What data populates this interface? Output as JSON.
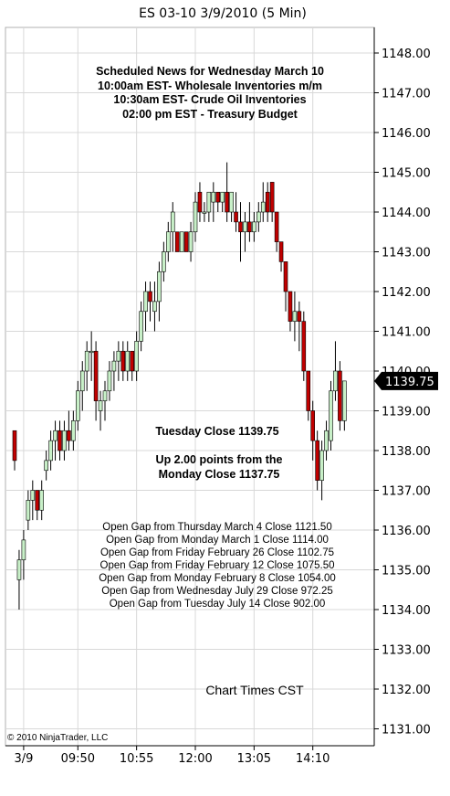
{
  "title": "ES 03-10  3/9/2010 (5 Min)",
  "news": {
    "heading": "Scheduled News for Wednesday March 10",
    "lines": [
      "10:00am EST-  Wholesale Inventories m/m",
      "10:30am EST- Crude Oil Inventories",
      "02:00 pm EST - Treasury Budget"
    ]
  },
  "close_note": {
    "line1": "Tuesday Close 1139.75",
    "line2": "Up 2.00 points from the",
    "line3": "Monday Close 1137.75"
  },
  "gaps": [
    "Open Gap from Thursday March 4 Close 1121.50",
    "Open Gap from Monday March 1 Close 1114.00",
    "Open Gap from Friday February 26 Close 1102.75",
    "Open Gap from Friday February 12 Close 1075.50",
    "Open Gap from Monday February 8 Close 1054.00",
    "Open Gap from Wednesday July 29 Close 972.25",
    "Open Gap from Tuesday July 14 Close 902.00"
  ],
  "chart_times_note": "Chart Times CST",
  "copyright": "© 2010 NinjaTrader, LLC",
  "last_price_label": "1139.75",
  "colors": {
    "up": "#c8f0c8",
    "down": "#c00000",
    "wick": "#000000",
    "grid": "#d8d8d8",
    "price_tag": "#000000"
  },
  "chart_data": {
    "type": "candlestick",
    "title": "ES 03-10  3/9/2010 (5 Min)",
    "ylim": [
      1130.75,
      1148.5
    ],
    "y_ticks": [
      1131.0,
      1132.0,
      1133.0,
      1134.0,
      1135.0,
      1136.0,
      1137.0,
      1138.0,
      1139.0,
      1140.0,
      1141.0,
      1142.0,
      1143.0,
      1144.0,
      1145.0,
      1146.0,
      1147.0,
      1148.0
    ],
    "y_tick_labels": [
      "1131.00",
      "1132.00",
      "1133.00",
      "1134.00",
      "1135.00",
      "1136.00",
      "1137.00",
      "1138.00",
      "1139.00",
      "1140.00",
      "1141.00",
      "1142.00",
      "1143.00",
      "1144.00",
      "1145.00",
      "1146.00",
      "1147.00",
      "1148.00"
    ],
    "x_tick_labels": [
      "3/9",
      "09:50",
      "10:55",
      "12:00",
      "13:05",
      "14:10"
    ],
    "x_tick_bar_index": [
      2,
      14,
      27,
      40,
      53,
      66
    ],
    "last_price": 1139.75,
    "bars": [
      {
        "o": 1138.5,
        "h": 1138.5,
        "l": 1137.5,
        "c": 1137.75
      },
      {
        "o": 1134.75,
        "h": 1135.5,
        "l": 1134.0,
        "c": 1135.25
      },
      {
        "o": 1135.25,
        "h": 1136.0,
        "l": 1134.75,
        "c": 1135.75
      },
      {
        "o": 1136.25,
        "h": 1137.0,
        "l": 1136.0,
        "c": 1136.75
      },
      {
        "o": 1136.75,
        "h": 1137.25,
        "l": 1136.25,
        "c": 1137.0
      },
      {
        "o": 1137.0,
        "h": 1137.0,
        "l": 1136.25,
        "c": 1136.5
      },
      {
        "o": 1136.5,
        "h": 1137.25,
        "l": 1136.25,
        "c": 1137.0
      },
      {
        "o": 1137.5,
        "h": 1138.0,
        "l": 1137.25,
        "c": 1137.75
      },
      {
        "o": 1137.75,
        "h": 1138.5,
        "l": 1137.5,
        "c": 1138.25
      },
      {
        "o": 1138.25,
        "h": 1138.75,
        "l": 1137.75,
        "c": 1138.5
      },
      {
        "o": 1138.5,
        "h": 1138.75,
        "l": 1137.75,
        "c": 1138.0
      },
      {
        "o": 1138.0,
        "h": 1138.75,
        "l": 1137.75,
        "c": 1138.5
      },
      {
        "o": 1138.5,
        "h": 1139.0,
        "l": 1138.0,
        "c": 1138.25
      },
      {
        "o": 1138.25,
        "h": 1139.0,
        "l": 1138.0,
        "c": 1138.75
      },
      {
        "o": 1138.75,
        "h": 1139.75,
        "l": 1138.5,
        "c": 1139.5
      },
      {
        "o": 1139.5,
        "h": 1140.25,
        "l": 1139.0,
        "c": 1140.0
      },
      {
        "o": 1140.0,
        "h": 1140.75,
        "l": 1139.5,
        "c": 1140.5
      },
      {
        "o": 1140.5,
        "h": 1141.0,
        "l": 1139.75,
        "c": 1140.5
      },
      {
        "o": 1140.5,
        "h": 1140.75,
        "l": 1138.75,
        "c": 1139.25
      },
      {
        "o": 1139.0,
        "h": 1139.5,
        "l": 1138.5,
        "c": 1139.25
      },
      {
        "o": 1139.25,
        "h": 1139.75,
        "l": 1138.75,
        "c": 1139.5
      },
      {
        "o": 1139.5,
        "h": 1140.25,
        "l": 1139.25,
        "c": 1140.0
      },
      {
        "o": 1140.0,
        "h": 1140.5,
        "l": 1139.5,
        "c": 1140.25
      },
      {
        "o": 1140.25,
        "h": 1140.75,
        "l": 1139.75,
        "c": 1140.5
      },
      {
        "o": 1140.5,
        "h": 1140.75,
        "l": 1139.75,
        "c": 1140.0
      },
      {
        "o": 1140.0,
        "h": 1140.75,
        "l": 1139.75,
        "c": 1140.5
      },
      {
        "o": 1140.5,
        "h": 1140.5,
        "l": 1139.75,
        "c": 1140.0
      },
      {
        "o": 1140.0,
        "h": 1141.0,
        "l": 1139.75,
        "c": 1140.75
      },
      {
        "o": 1140.75,
        "h": 1141.75,
        "l": 1140.5,
        "c": 1141.5
      },
      {
        "o": 1141.5,
        "h": 1142.25,
        "l": 1141.0,
        "c": 1142.0
      },
      {
        "o": 1142.0,
        "h": 1142.25,
        "l": 1141.25,
        "c": 1141.75
      },
      {
        "o": 1141.5,
        "h": 1142.25,
        "l": 1141.0,
        "c": 1141.75
      },
      {
        "o": 1141.75,
        "h": 1142.75,
        "l": 1141.25,
        "c": 1142.5
      },
      {
        "o": 1142.5,
        "h": 1143.25,
        "l": 1142.25,
        "c": 1143.0
      },
      {
        "o": 1143.0,
        "h": 1143.75,
        "l": 1142.75,
        "c": 1143.5
      },
      {
        "o": 1143.5,
        "h": 1144.25,
        "l": 1143.0,
        "c": 1144.0
      },
      {
        "o": 1143.5,
        "h": 1143.5,
        "l": 1143.0,
        "c": 1143.0
      },
      {
        "o": 1143.0,
        "h": 1143.5,
        "l": 1143.0,
        "c": 1143.5
      },
      {
        "o": 1143.5,
        "h": 1143.5,
        "l": 1143.0,
        "c": 1143.0
      },
      {
        "o": 1143.0,
        "h": 1143.75,
        "l": 1142.75,
        "c": 1143.5
      },
      {
        "o": 1143.5,
        "h": 1144.5,
        "l": 1143.25,
        "c": 1144.25
      },
      {
        "o": 1144.5,
        "h": 1144.75,
        "l": 1143.75,
        "c": 1144.0
      },
      {
        "o": 1144.0,
        "h": 1144.25,
        "l": 1143.75,
        "c": 1144.0
      },
      {
        "o": 1144.0,
        "h": 1144.5,
        "l": 1143.75,
        "c": 1144.5
      },
      {
        "o": 1144.25,
        "h": 1144.75,
        "l": 1143.75,
        "c": 1144.5
      },
      {
        "o": 1144.5,
        "h": 1144.5,
        "l": 1144.0,
        "c": 1144.25
      },
      {
        "o": 1144.25,
        "h": 1144.5,
        "l": 1144.0,
        "c": 1144.5
      },
      {
        "o": 1144.5,
        "h": 1145.25,
        "l": 1143.75,
        "c": 1144.0
      },
      {
        "o": 1144.0,
        "h": 1144.5,
        "l": 1143.75,
        "c": 1144.5
      },
      {
        "o": 1144.0,
        "h": 1144.5,
        "l": 1143.5,
        "c": 1143.75
      },
      {
        "o": 1143.75,
        "h": 1144.25,
        "l": 1142.75,
        "c": 1143.5
      },
      {
        "o": 1143.5,
        "h": 1144.0,
        "l": 1143.0,
        "c": 1143.75
      },
      {
        "o": 1143.75,
        "h": 1144.25,
        "l": 1143.25,
        "c": 1143.5
      },
      {
        "o": 1143.5,
        "h": 1144.0,
        "l": 1143.25,
        "c": 1143.75
      },
      {
        "o": 1143.75,
        "h": 1144.25,
        "l": 1143.5,
        "c": 1144.0
      },
      {
        "o": 1144.0,
        "h": 1144.75,
        "l": 1143.75,
        "c": 1144.25
      },
      {
        "o": 1144.5,
        "h": 1144.75,
        "l": 1143.75,
        "c": 1144.0
      },
      {
        "o": 1144.75,
        "h": 1144.75,
        "l": 1143.75,
        "c": 1144.0
      },
      {
        "o": 1144.0,
        "h": 1144.0,
        "l": 1143.0,
        "c": 1143.25
      },
      {
        "o": 1143.25,
        "h": 1143.25,
        "l": 1142.5,
        "c": 1142.75
      },
      {
        "o": 1142.75,
        "h": 1142.75,
        "l": 1141.5,
        "c": 1142.0
      },
      {
        "o": 1142.0,
        "h": 1142.0,
        "l": 1141.0,
        "c": 1141.25
      },
      {
        "o": 1141.25,
        "h": 1142.0,
        "l": 1140.75,
        "c": 1141.5
      },
      {
        "o": 1141.5,
        "h": 1141.75,
        "l": 1140.5,
        "c": 1141.25
      },
      {
        "o": 1141.25,
        "h": 1141.5,
        "l": 1139.75,
        "c": 1140.0
      },
      {
        "o": 1140.0,
        "h": 1140.0,
        "l": 1138.75,
        "c": 1139.0
      },
      {
        "o": 1139.0,
        "h": 1139.25,
        "l": 1137.75,
        "c": 1138.25
      },
      {
        "o": 1138.25,
        "h": 1138.5,
        "l": 1137.0,
        "c": 1137.25
      },
      {
        "o": 1137.25,
        "h": 1138.25,
        "l": 1136.75,
        "c": 1138.0
      },
      {
        "o": 1138.0,
        "h": 1138.75,
        "l": 1137.75,
        "c": 1138.5
      },
      {
        "o": 1138.25,
        "h": 1139.75,
        "l": 1138.0,
        "c": 1139.5
      },
      {
        "o": 1139.5,
        "h": 1140.75,
        "l": 1139.25,
        "c": 1140.0
      },
      {
        "o": 1140.0,
        "h": 1140.25,
        "l": 1138.5,
        "c": 1138.75
      },
      {
        "o": 1138.75,
        "h": 1139.75,
        "l": 1138.5,
        "c": 1139.75
      }
    ]
  }
}
